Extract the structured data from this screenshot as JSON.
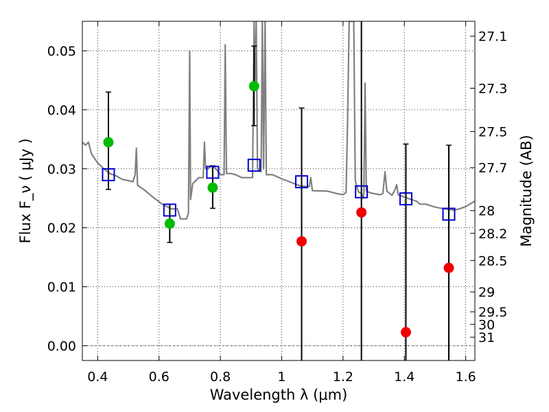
{
  "chart_data": {
    "type": "scatter",
    "title": "",
    "xlabel": "Wavelength  λ (μm)",
    "ylabel": "Flux  F_ν  ( μJy )",
    "ylabel_right": "Magnitude (AB)",
    "xlim": [
      0.35,
      1.63
    ],
    "ylim": [
      -0.0025,
      0.055
    ],
    "grid": true,
    "x_ticks": [
      0.4,
      0.6,
      0.8,
      1.0,
      1.2,
      1.4,
      1.6
    ],
    "x_tick_labels": [
      "0.4",
      "0.6",
      "0.8",
      "1",
      "1.2",
      "1.4",
      "1.6"
    ],
    "y_ticks": [
      0.0,
      0.01,
      0.02,
      0.03,
      0.04,
      0.05
    ],
    "y_tick_labels": [
      "0.00",
      "0.01",
      "0.02",
      "0.03",
      "0.04",
      "0.05"
    ],
    "right_axis": {
      "ticks": [
        {
          "label": "27.1",
          "mag": 27.1
        },
        {
          "label": "27.3",
          "mag": 27.3
        },
        {
          "label": "27.5",
          "mag": 27.5
        },
        {
          "label": "27.7",
          "mag": 27.7
        },
        {
          "label": "28",
          "mag": 28.0
        },
        {
          "label": "28.2",
          "mag": 28.2
        },
        {
          "label": "28.5",
          "mag": 28.5
        },
        {
          "label": "29",
          "mag": 29.0
        },
        {
          "label": "29.5",
          "mag": 29.5
        },
        {
          "label": "30",
          "mag": 30.0
        },
        {
          "label": "31",
          "mag": 31.0
        }
      ]
    },
    "series": [
      {
        "kind": "detection",
        "marker": "circle",
        "color": "#00bb00",
        "points": [
          {
            "x": 0.435,
            "y": 0.0345,
            "err_low": 0.0265,
            "err_high": 0.043
          },
          {
            "x": 0.635,
            "y": 0.0207,
            "err_low": 0.0175,
            "err_high": 0.024
          },
          {
            "x": 0.775,
            "y": 0.0268,
            "err_low": 0.0233,
            "err_high": 0.0305
          },
          {
            "x": 0.91,
            "y": 0.044,
            "err_low": 0.0373,
            "err_high": 0.0508
          }
        ]
      },
      {
        "kind": "upper",
        "marker": "circle",
        "color": "#ee0000",
        "points": [
          {
            "x": 1.065,
            "y": 0.0177,
            "err_low": -0.0025,
            "err_high": 0.0403
          },
          {
            "x": 1.26,
            "y": 0.0226,
            "err_low": -0.0025,
            "err_high": 0.0555
          },
          {
            "x": 1.405,
            "y": 0.0023,
            "err_low": -0.0025,
            "err_high": 0.0342
          },
          {
            "x": 1.545,
            "y": 0.0132,
            "err_low": -0.0025,
            "err_high": 0.034
          }
        ]
      },
      {
        "kind": "model",
        "marker": "open-square",
        "color": "#0000cc",
        "points": [
          {
            "x": 0.435,
            "y": 0.029
          },
          {
            "x": 0.635,
            "y": 0.023
          },
          {
            "x": 0.775,
            "y": 0.0294
          },
          {
            "x": 0.91,
            "y": 0.0306
          },
          {
            "x": 1.065,
            "y": 0.0278
          },
          {
            "x": 1.26,
            "y": 0.0261
          },
          {
            "x": 1.405,
            "y": 0.0249
          },
          {
            "x": 1.545,
            "y": 0.0223
          }
        ]
      }
    ],
    "spectrum": {
      "color": "#808080",
      "points": [
        [
          0.35,
          0.0345
        ],
        [
          0.36,
          0.034
        ],
        [
          0.37,
          0.0345
        ],
        [
          0.38,
          0.0325
        ],
        [
          0.4,
          0.031
        ],
        [
          0.42,
          0.03
        ],
        [
          0.44,
          0.0292
        ],
        [
          0.46,
          0.0288
        ],
        [
          0.48,
          0.0282
        ],
        [
          0.5,
          0.028
        ],
        [
          0.515,
          0.0278
        ],
        [
          0.522,
          0.029
        ],
        [
          0.526,
          0.0335
        ],
        [
          0.53,
          0.0272
        ],
        [
          0.55,
          0.0265
        ],
        [
          0.58,
          0.0252
        ],
        [
          0.61,
          0.024
        ],
        [
          0.64,
          0.0232
        ],
        [
          0.66,
          0.0232
        ],
        [
          0.67,
          0.0215
        ],
        [
          0.69,
          0.0215
        ],
        [
          0.696,
          0.0225
        ],
        [
          0.7,
          0.05
        ],
        [
          0.703,
          0.0248
        ],
        [
          0.71,
          0.0275
        ],
        [
          0.73,
          0.0285
        ],
        [
          0.744,
          0.0285
        ],
        [
          0.748,
          0.0345
        ],
        [
          0.752,
          0.03
        ],
        [
          0.76,
          0.03
        ],
        [
          0.77,
          0.0305
        ],
        [
          0.78,
          0.0302
        ],
        [
          0.79,
          0.0297
        ],
        [
          0.8,
          0.029
        ],
        [
          0.812,
          0.029
        ],
        [
          0.816,
          0.051
        ],
        [
          0.82,
          0.0292
        ],
        [
          0.835,
          0.0292
        ],
        [
          0.85,
          0.029
        ],
        [
          0.87,
          0.0285
        ],
        [
          0.89,
          0.0285
        ],
        [
          0.905,
          0.0285
        ],
        [
          0.91,
          0.055
        ],
        [
          0.913,
          0.044
        ],
        [
          0.917,
          0.055
        ],
        [
          0.921,
          0.03
        ],
        [
          0.933,
          0.0295
        ],
        [
          0.937,
          0.055
        ],
        [
          0.941,
          0.03
        ],
        [
          0.946,
          0.055
        ],
        [
          0.95,
          0.029
        ],
        [
          0.97,
          0.029
        ],
        [
          1.0,
          0.0283
        ],
        [
          1.03,
          0.0277
        ],
        [
          1.06,
          0.0271
        ],
        [
          1.08,
          0.027
        ],
        [
          1.09,
          0.027
        ],
        [
          1.095,
          0.0285
        ],
        [
          1.1,
          0.0263
        ],
        [
          1.15,
          0.0262
        ],
        [
          1.18,
          0.0258
        ],
        [
          1.2,
          0.0256
        ],
        [
          1.21,
          0.026
        ],
        [
          1.215,
          0.038
        ],
        [
          1.22,
          0.055
        ],
        [
          1.235,
          0.055
        ],
        [
          1.24,
          0.028
        ],
        [
          1.25,
          0.0261
        ],
        [
          1.26,
          0.0258
        ],
        [
          1.265,
          0.025
        ],
        [
          1.268,
          0.026
        ],
        [
          1.272,
          0.0445
        ],
        [
          1.276,
          0.0262
        ],
        [
          1.29,
          0.0259
        ],
        [
          1.32,
          0.0256
        ],
        [
          1.33,
          0.0258
        ],
        [
          1.337,
          0.0295
        ],
        [
          1.343,
          0.0262
        ],
        [
          1.36,
          0.0255
        ],
        [
          1.37,
          0.0265
        ],
        [
          1.375,
          0.0273
        ],
        [
          1.38,
          0.0256
        ],
        [
          1.41,
          0.025
        ],
        [
          1.44,
          0.0245
        ],
        [
          1.45,
          0.024
        ],
        [
          1.47,
          0.024
        ],
        [
          1.5,
          0.0235
        ],
        [
          1.53,
          0.0232
        ],
        [
          1.56,
          0.023
        ],
        [
          1.58,
          0.0232
        ],
        [
          1.6,
          0.0236
        ],
        [
          1.62,
          0.0242
        ],
        [
          1.63,
          0.0245
        ]
      ]
    }
  }
}
